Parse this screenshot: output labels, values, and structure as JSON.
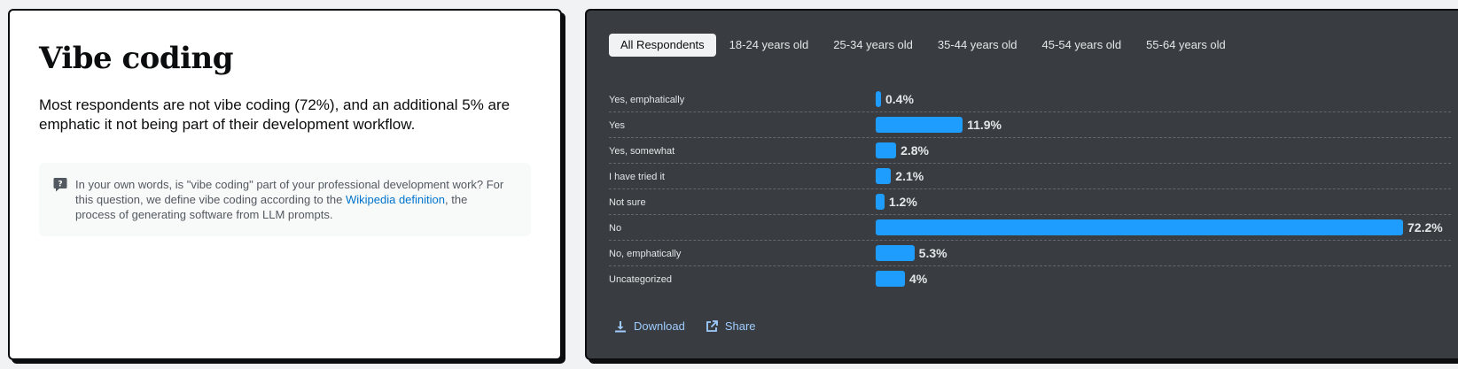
{
  "left": {
    "title": "Vibe coding",
    "description": "Most respondents are not vibe coding (72%), and an additional 5% are emphatic it not being part of their development workflow.",
    "question": {
      "icon": "question-bubble-icon",
      "text_before": "In your own words, is \"vibe coding\" part of your professional development work? For this question, we define vibe coding according to the ",
      "link_text": "Wikipedia definition",
      "text_after": ", the process of generating software from LLM prompts."
    }
  },
  "tabs": [
    {
      "label": "All Respondents",
      "active": true
    },
    {
      "label": "18-24 years old",
      "active": false
    },
    {
      "label": "25-34 years old",
      "active": false
    },
    {
      "label": "35-44 years old",
      "active": false
    },
    {
      "label": "45-54 years old",
      "active": false
    },
    {
      "label": "55-64 years old",
      "active": false
    }
  ],
  "chart_data": {
    "type": "bar",
    "orientation": "horizontal",
    "categories": [
      "Yes, emphatically",
      "Yes",
      "Yes, somewhat",
      "I have tried it",
      "Not sure",
      "No",
      "No, emphatically",
      "Uncategorized"
    ],
    "values": [
      0.4,
      11.9,
      2.8,
      2.1,
      1.2,
      72.2,
      5.3,
      4
    ],
    "value_labels": [
      "0.4%",
      "11.9%",
      "2.8%",
      "2.1%",
      "1.2%",
      "72.2%",
      "5.3%",
      "4%"
    ],
    "unit": "%",
    "xlim": [
      0,
      72.2
    ],
    "bar_color": "#1e9dff",
    "grid": false
  },
  "actions": {
    "download_label": "Download",
    "download_icon": "download-icon",
    "share_label": "Share",
    "share_icon": "external-link-icon"
  }
}
